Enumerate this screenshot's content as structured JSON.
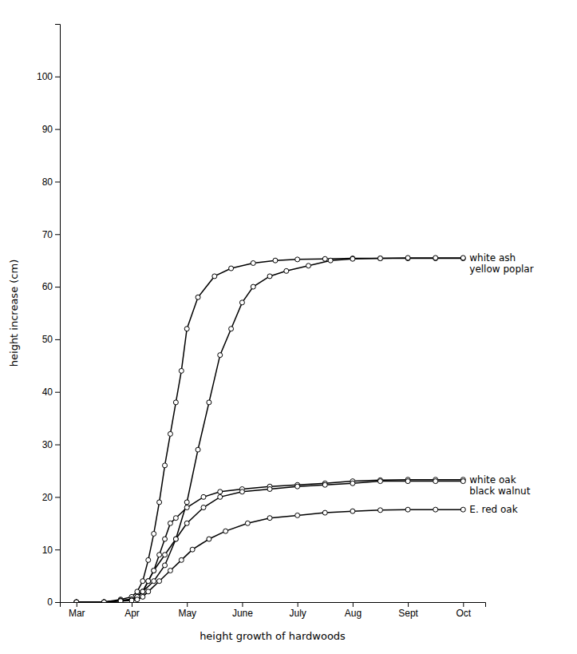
{
  "chart_data": {
    "type": "line",
    "xlabel": "height growth of hardwoods",
    "ylabel": "height increase (cm)",
    "xlim": [
      -0.3,
      7.4
    ],
    "xticks": [
      {
        "value": 0,
        "label": "Mar"
      },
      {
        "value": 1,
        "label": "Apr"
      },
      {
        "value": 2,
        "label": "May"
      },
      {
        "value": 3,
        "label": "June"
      },
      {
        "value": 4,
        "label": "July"
      },
      {
        "value": 5,
        "label": "Aug"
      },
      {
        "value": 6,
        "label": "Sept"
      },
      {
        "value": 7,
        "label": "Oct"
      }
    ],
    "ylim": [
      0,
      110
    ],
    "yticks": [
      0,
      10,
      20,
      30,
      40,
      50,
      60,
      70,
      80,
      90,
      100
    ],
    "color": "#000000",
    "marker": "circle",
    "grid": false,
    "series": [
      {
        "name": "yellow poplar",
        "x": [
          0,
          0.5,
          0.8,
          1.0,
          1.1,
          1.2,
          1.3,
          1.4,
          1.5,
          1.6,
          1.7,
          1.8,
          1.9,
          2.0,
          2.2,
          2.5,
          2.8,
          3.2,
          3.6,
          4.0,
          4.5,
          5.0,
          5.5,
          6.0,
          6.5,
          7.0
        ],
        "values": [
          0,
          0,
          0.5,
          1,
          2,
          4,
          8,
          13,
          19,
          26,
          32,
          38,
          44,
          52,
          58,
          62,
          63.5,
          64.5,
          65,
          65.2,
          65.3,
          65.4,
          65.4,
          65.4,
          65.4,
          65.4
        ]
      },
      {
        "name": "white ash",
        "x": [
          0,
          0.5,
          0.8,
          1.0,
          1.1,
          1.2,
          1.4,
          1.6,
          1.8,
          2.0,
          2.2,
          2.4,
          2.6,
          2.8,
          3.0,
          3.2,
          3.5,
          3.8,
          4.2,
          4.6,
          5.0,
          5.5,
          6.0,
          6.5,
          7.0
        ],
        "values": [
          0,
          0,
          0.3,
          0.5,
          1,
          2,
          4,
          7,
          12,
          19,
          29,
          38,
          47,
          52,
          57,
          60,
          62,
          63,
          64,
          65,
          65.3,
          65.4,
          65.5,
          65.5,
          65.5
        ]
      },
      {
        "name": "white oak",
        "x": [
          0,
          0.5,
          0.8,
          1.0,
          1.1,
          1.2,
          1.3,
          1.4,
          1.5,
          1.6,
          1.7,
          1.8,
          2.0,
          2.3,
          2.6,
          3.0,
          3.5,
          4.0,
          4.5,
          5.0,
          5.5,
          6.0,
          6.5,
          7.0
        ],
        "values": [
          0,
          0,
          0.3,
          0.5,
          1,
          2,
          4,
          6,
          9,
          12,
          15,
          16,
          18,
          20,
          21,
          21.5,
          22,
          22.3,
          22.6,
          23,
          23.2,
          23.3,
          23.3,
          23.3
        ]
      },
      {
        "name": "black walnut",
        "x": [
          0,
          0.5,
          0.8,
          1.0,
          1.1,
          1.2,
          1.3,
          1.4,
          1.6,
          1.8,
          2.0,
          2.3,
          2.6,
          3.0,
          3.5,
          4.0,
          4.5,
          5.0,
          5.5,
          6.0,
          6.5,
          7.0
        ],
        "values": [
          0,
          0,
          0.3,
          0.5,
          1,
          2,
          4,
          6,
          9,
          12,
          15,
          18,
          20,
          21,
          21.5,
          22,
          22.3,
          22.6,
          23,
          23,
          23,
          23
        ]
      },
      {
        "name": "E. red oak",
        "x": [
          0,
          0.5,
          0.8,
          1.0,
          1.1,
          1.2,
          1.3,
          1.5,
          1.7,
          1.9,
          2.1,
          2.4,
          2.7,
          3.1,
          3.5,
          4.0,
          4.5,
          5.0,
          5.5,
          6.0,
          6.5,
          7.0
        ],
        "values": [
          0,
          0,
          0.2,
          0.3,
          0.5,
          1,
          2,
          4,
          6,
          8,
          10,
          12,
          13.5,
          15,
          16,
          16.5,
          17,
          17.3,
          17.5,
          17.6,
          17.6,
          17.6
        ]
      }
    ]
  }
}
